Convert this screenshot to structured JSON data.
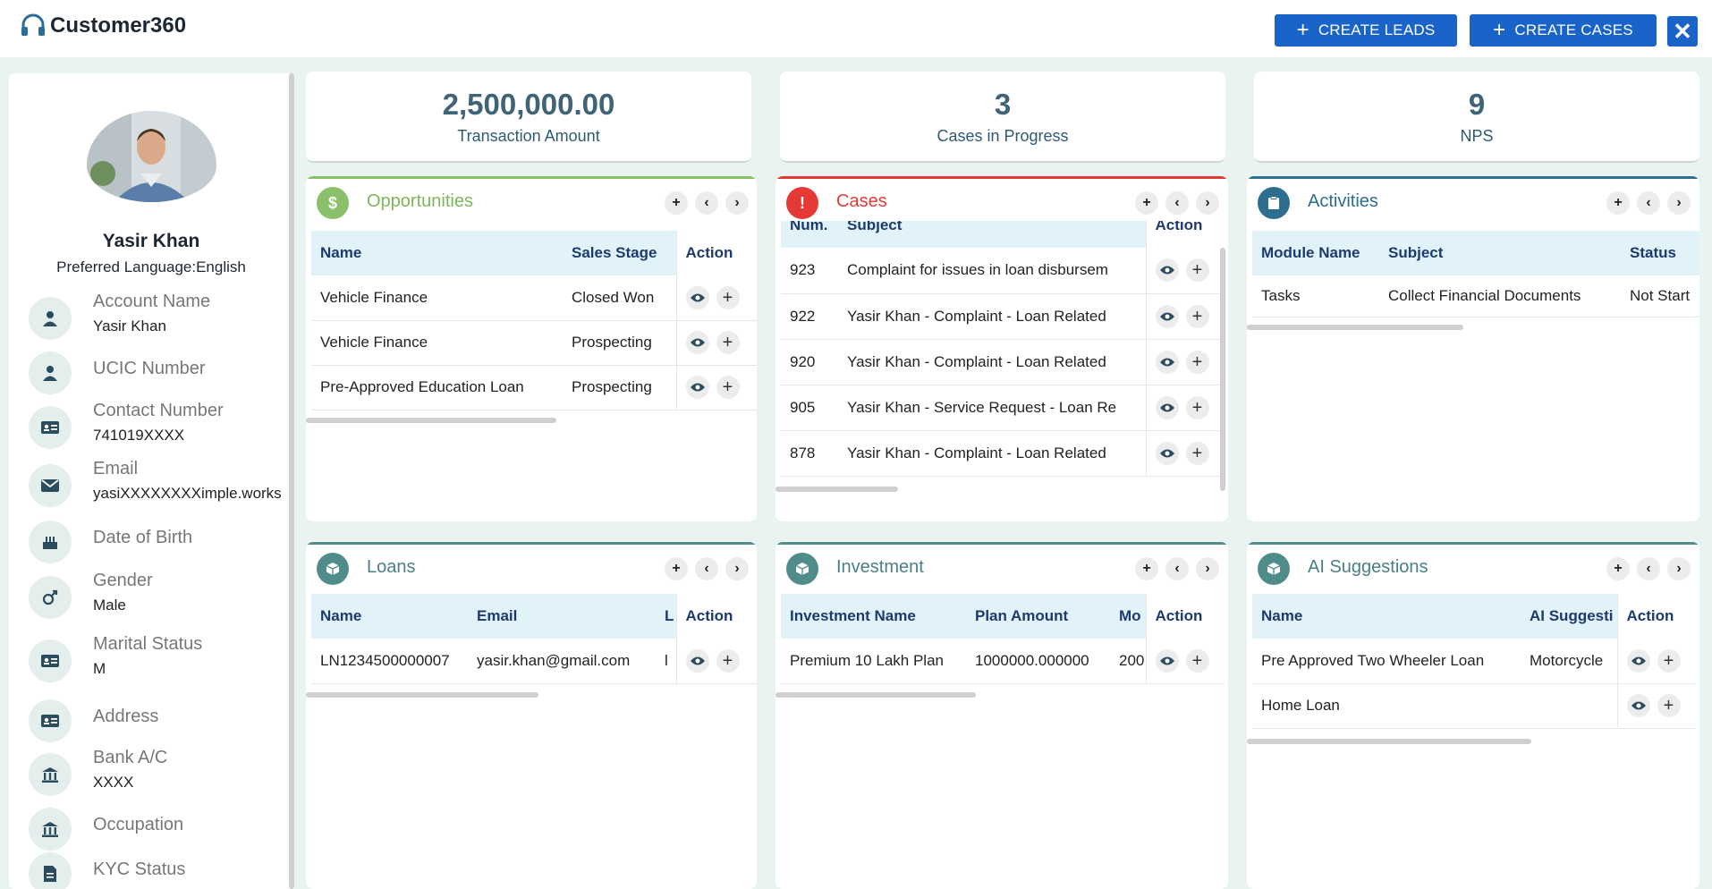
{
  "header": {
    "app_title": "Customer360",
    "create_leads_label": "CREATE LEADS",
    "create_cases_label": "CREATE CASES",
    "close_label": "✕"
  },
  "profile": {
    "name": "Yasir Khan",
    "preferred_language": "Preferred Language:English",
    "fields": [
      {
        "label": "Account Name",
        "value": "Yasir Khan",
        "icon": "person-icon"
      },
      {
        "label": "UCIC Number",
        "value": "",
        "icon": "person-icon"
      },
      {
        "label": "Contact Number",
        "value": "741019XXXX",
        "icon": "id-card-icon"
      },
      {
        "label": "Email",
        "value": "yasiXXXXXXXXimple.works",
        "icon": "mail-icon"
      },
      {
        "label": "Date of Birth",
        "value": "",
        "icon": "cake-icon"
      },
      {
        "label": "Gender",
        "value": "Male",
        "icon": "gender-icon"
      },
      {
        "label": "Marital Status",
        "value": "M",
        "icon": "id-card-icon"
      },
      {
        "label": "Address",
        "value": "",
        "icon": "id-card-icon"
      },
      {
        "label": "Bank A/C",
        "value": "XXXX",
        "icon": "bank-icon"
      },
      {
        "label": "Occupation",
        "value": "",
        "icon": "bank-icon"
      },
      {
        "label": "KYC Status",
        "value": "",
        "icon": "document-icon"
      }
    ]
  },
  "stats": [
    {
      "value": "2,500,000.00",
      "label": "Transaction Amount"
    },
    {
      "value": "3",
      "label": "Cases in Progress"
    },
    {
      "value": "9",
      "label": "NPS"
    }
  ],
  "panels": {
    "opportunities": {
      "title": "Opportunities",
      "icon_glyph": "$",
      "color": "#7cb75a",
      "columns": [
        "Name",
        "Sales Stage",
        "Action"
      ],
      "rows": [
        [
          "Vehicle Finance",
          "Closed Won"
        ],
        [
          "Vehicle Finance",
          "Prospecting"
        ],
        [
          "Pre-Approved Education Loan",
          "Prospecting"
        ]
      ]
    },
    "cases": {
      "title": "Cases",
      "icon_glyph": "!",
      "color": "#e53935",
      "columns": [
        "Num.",
        "Subject",
        "Action"
      ],
      "rows": [
        [
          "923",
          "Complaint for issues in loan disbursem"
        ],
        [
          "922",
          "Yasir Khan - Complaint - Loan Related"
        ],
        [
          "920",
          "Yasir Khan - Complaint - Loan Related"
        ],
        [
          "905",
          "Yasir Khan - Service Request - Loan Re"
        ],
        [
          "878",
          "Yasir Khan - Complaint - Loan Related"
        ]
      ]
    },
    "activities": {
      "title": "Activities",
      "color": "#2e6e8e",
      "columns": [
        "Module Name",
        "Subject",
        "Status"
      ],
      "rows": [
        [
          "Tasks",
          "Collect Financial Documents",
          "Not Start"
        ]
      ]
    },
    "loans": {
      "title": "Loans",
      "color": "#4f8c8a",
      "columns": [
        "Name",
        "Email",
        "L",
        "Action"
      ],
      "rows": [
        [
          "LN1234500000007",
          "yasir.khan@gmail.com",
          "l"
        ]
      ]
    },
    "investment": {
      "title": "Investment",
      "color": "#4f8c8a",
      "columns": [
        "Investment Name",
        "Plan Amount",
        "Mo",
        "Action"
      ],
      "rows": [
        [
          "Premium 10 Lakh Plan",
          "1000000.000000",
          "200"
        ]
      ]
    },
    "ai_suggestions": {
      "title": "AI Suggestions",
      "color": "#4f8c8a",
      "columns": [
        "Name",
        "AI Suggesti",
        "Action"
      ],
      "rows": [
        [
          "Pre Approved Two Wheeler Loan",
          "Motorcycle"
        ],
        [
          "Home Loan",
          ""
        ]
      ]
    }
  }
}
